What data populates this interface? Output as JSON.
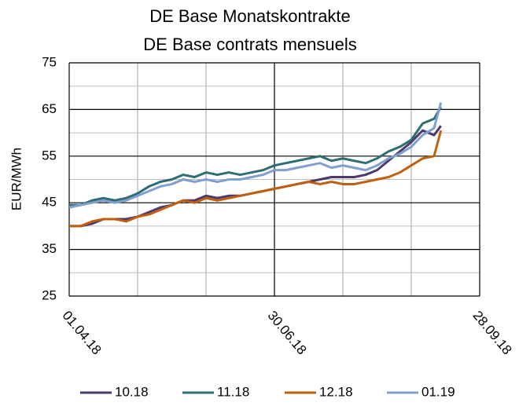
{
  "chart_data": {
    "type": "line",
    "title": "DE Base Monatskontrakte",
    "subtitle": "DE Base contrats mensuels",
    "y_label": "EUR/MWh",
    "x": [
      "01.04.18",
      "06.04.18",
      "11.04.18",
      "16.04.18",
      "21.04.18",
      "26.04.18",
      "01.05.18",
      "06.05.18",
      "11.05.18",
      "16.05.18",
      "21.05.18",
      "26.05.18",
      "31.05.18",
      "05.06.18",
      "10.06.18",
      "15.06.18",
      "20.06.18",
      "25.06.18",
      "30.06.18",
      "05.07.18",
      "10.07.18",
      "15.07.18",
      "20.07.18",
      "25.07.18",
      "30.07.18",
      "04.08.18",
      "09.08.18",
      "14.08.18",
      "19.08.18",
      "24.08.18",
      "29.08.18",
      "03.09.18",
      "08.09.18",
      "11.09.18"
    ],
    "series": [
      {
        "name": "10.18",
        "color": "#4b3a6b",
        "values": [
          40,
          40,
          40.5,
          41.5,
          41.5,
          41.5,
          42,
          43,
          44,
          44.5,
          45.5,
          45.5,
          46.5,
          46,
          46.5,
          46.5,
          47,
          47.5,
          48,
          48.5,
          49,
          49.5,
          50,
          50.5,
          50.5,
          50.5,
          51,
          52,
          54,
          56,
          58,
          60.5,
          59.5,
          61.5
        ]
      },
      {
        "name": "11.18",
        "color": "#2e6e73",
        "values": [
          44.5,
          44.5,
          45.5,
          46,
          45.5,
          46,
          47,
          48.5,
          49.5,
          50,
          51,
          50.5,
          51.5,
          51,
          51.5,
          51,
          51.5,
          52,
          53,
          53.5,
          54,
          54.5,
          55,
          54,
          54.5,
          54,
          53.5,
          54.5,
          56,
          57,
          58.5,
          62,
          63,
          65.5
        ]
      },
      {
        "name": "12.18",
        "color": "#c0600e",
        "values": [
          40,
          40,
          41,
          41.5,
          41.5,
          41,
          42,
          42.5,
          43.5,
          44.5,
          45.5,
          45,
          46,
          45.5,
          46,
          46.5,
          47,
          47.5,
          48,
          48.5,
          49,
          49.5,
          49,
          49.5,
          49,
          49,
          49.5,
          50,
          50.5,
          51.5,
          53,
          54.5,
          55,
          60.5
        ]
      },
      {
        "name": "01.19",
        "color": "#7f9fcf",
        "values": [
          44,
          44.5,
          45,
          45.5,
          45,
          45.5,
          46.5,
          47.5,
          48.5,
          49,
          50,
          49.5,
          50,
          49.5,
          50,
          50,
          50.5,
          51,
          52,
          52,
          52.5,
          53,
          53.5,
          52.5,
          53,
          52.5,
          52,
          53,
          54.5,
          55.5,
          57,
          59.5,
          61,
          66.5
        ]
      }
    ],
    "xlim": [
      "01.04.18",
      "28.09.18"
    ],
    "xticks": [
      "01.04.18",
      "30.06.18",
      "28.09.18"
    ],
    "x_minor_ticks": [
      "01.05.18",
      "31.05.18",
      "30.07.18",
      "29.08.18"
    ],
    "ylim": [
      25,
      75
    ],
    "yticks": [
      25,
      35,
      45,
      55,
      65,
      75
    ],
    "y_minor_ticks": [
      30,
      40,
      50,
      60,
      70
    ],
    "grid": true,
    "legend": "bottom"
  }
}
